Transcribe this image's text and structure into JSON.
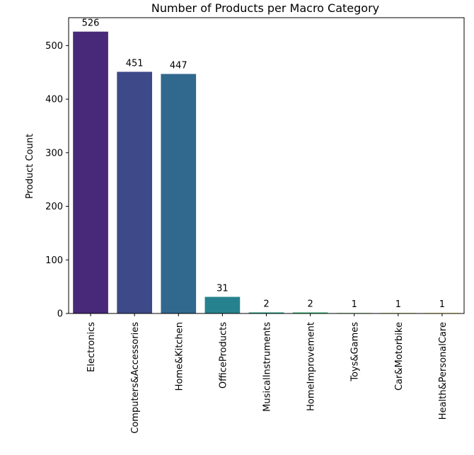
{
  "chart_data": {
    "type": "bar",
    "title": "Number of Products per Macro Category",
    "xlabel": "",
    "ylabel": "Product Count",
    "categories": [
      "Electronics",
      "Computers&Accessories",
      "Home&Kitchen",
      "OfficeProducts",
      "MusicalInstruments",
      "HomeImprovement",
      "Toys&Games",
      "Car&Motorbike",
      "Health&PersonalCare"
    ],
    "values": [
      526,
      451,
      447,
      31,
      2,
      2,
      1,
      1,
      1
    ],
    "data_labels": [
      "526",
      "451",
      "447",
      "31",
      "2",
      "2",
      "1",
      "1",
      "1"
    ],
    "ylim": [
      0,
      552
    ],
    "yticks": [
      0,
      100,
      200,
      300,
      400,
      500
    ],
    "ytick_labels": [
      "0",
      "100",
      "200",
      "300",
      "400",
      "500"
    ],
    "colors": [
      "#482878",
      "#3e4989",
      "#31688e",
      "#26828e",
      "#1f9e89",
      "#35b779",
      "#6ece58",
      "#b5de2b",
      "#fde725"
    ],
    "grid": false,
    "legend": "none"
  }
}
